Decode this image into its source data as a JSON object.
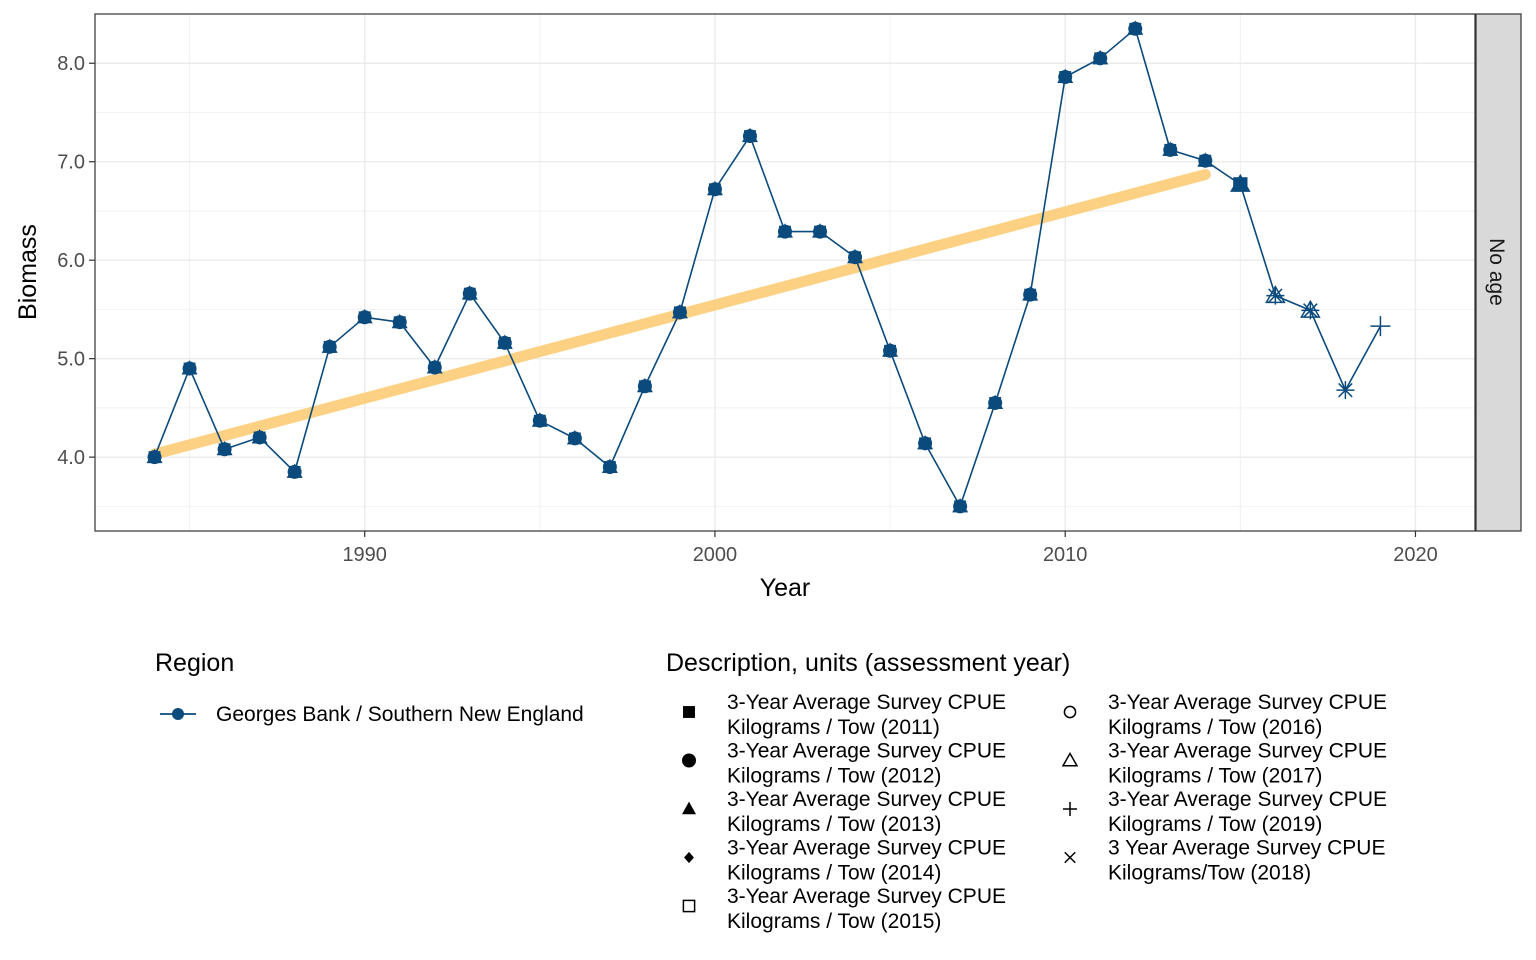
{
  "chart_data": {
    "type": "line",
    "xlabel": "Year",
    "ylabel": "Biomass",
    "xlim": [
      1982.3,
      2021.7
    ],
    "ylim": [
      3.25,
      8.5
    ],
    "xticks": [
      1990,
      2000,
      2010,
      2020
    ],
    "xtick_labels": [
      "1990",
      "2000",
      "2010",
      "2020"
    ],
    "yticks": [
      4,
      5,
      6,
      7,
      8
    ],
    "ytick_labels": [
      "4.0",
      "5.0",
      "6.0",
      "7.0",
      "8.0"
    ],
    "grid": true,
    "facet_label": "No age",
    "series_color": "#0b4a7c",
    "trend_color": "#fdcf7e",
    "series": [
      {
        "name": "Georges Bank / Southern New England",
        "x": [
          1984,
          1985,
          1986,
          1987,
          1988,
          1989,
          1990,
          1991,
          1992,
          1993,
          1994,
          1995,
          1996,
          1997,
          1998,
          1999,
          2000,
          2001,
          2002,
          2003,
          2004,
          2005,
          2006,
          2007,
          2008,
          2009,
          2010,
          2011,
          2012,
          2013,
          2014,
          2015,
          2016,
          2017,
          2018,
          2019
        ],
        "y": [
          4.0,
          4.9,
          4.08,
          4.2,
          3.85,
          5.12,
          5.42,
          5.37,
          4.91,
          5.66,
          5.16,
          4.37,
          4.19,
          3.9,
          4.72,
          5.47,
          6.72,
          7.26,
          6.29,
          6.29,
          6.03,
          5.08,
          4.14,
          3.5,
          4.55,
          5.65,
          7.86,
          8.05,
          8.35,
          7.12,
          7.01,
          6.77,
          5.64,
          5.49,
          4.68,
          5.33
        ]
      }
    ],
    "trend": {
      "x": [
        1984,
        2014
      ],
      "y": [
        4.03,
        6.87
      ]
    },
    "legend_region": {
      "title": "Region",
      "items": [
        {
          "label": "Georges Bank / Southern New England"
        }
      ]
    },
    "legend_description": {
      "title": "Description, units (assessment year)",
      "items": [
        {
          "symbol": "square-filled",
          "line1": "3-Year Average Survey CPUE",
          "line2": "Kilograms / Tow (2011)"
        },
        {
          "symbol": "circle-filled",
          "line1": "3-Year Average Survey CPUE",
          "line2": "Kilograms / Tow (2012)"
        },
        {
          "symbol": "triangle-filled",
          "line1": "3-Year Average Survey CPUE",
          "line2": "Kilograms / Tow (2013)"
        },
        {
          "symbol": "diamond-filled",
          "line1": "3-Year Average Survey CPUE",
          "line2": "Kilograms / Tow (2014)"
        },
        {
          "symbol": "square-open",
          "line1": "3-Year Average Survey CPUE",
          "line2": "Kilograms / Tow (2015)"
        },
        {
          "symbol": "circle-open",
          "line1": "3-Year Average Survey CPUE",
          "line2": "Kilograms / Tow (2016)"
        },
        {
          "symbol": "triangle-open",
          "line1": "3-Year Average Survey CPUE",
          "line2": "Kilograms / Tow (2017)"
        },
        {
          "symbol": "plus",
          "line1": "3-Year Average Survey CPUE",
          "line2": "Kilograms / Tow (2019)"
        },
        {
          "symbol": "cross",
          "line1": "3 Year Average Survey CPUE",
          "line2": "Kilograms/Tow (2018)"
        }
      ]
    }
  }
}
